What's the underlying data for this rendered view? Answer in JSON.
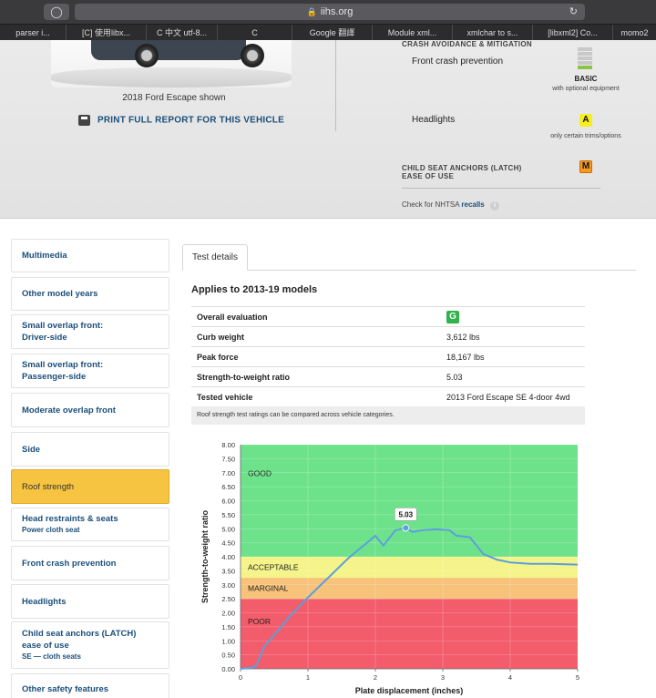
{
  "browser": {
    "url": "iihs.org",
    "bookmarks": [
      "parser i...",
      "[C] 使用libx...",
      "C 中文 utf-8...",
      "C",
      "Google 翻譯",
      "Module xml...",
      "xmlchar to s...",
      "[libxml2] Co...",
      "momo2"
    ]
  },
  "vehicle_summary": {
    "caption": "2018 Ford Escape shown",
    "print_link": "PRINT FULL REPORT FOR THIS VEHICLE",
    "crash_avoidance_title": "CRASH AVOIDANCE & MITIGATION",
    "front_crash_label": "Front crash prevention",
    "front_crash_rating": "BASIC",
    "front_crash_note": "with optional equipment",
    "front_crash_level": 0.2,
    "headlights_label": "Headlights",
    "headlights_rating": "A",
    "headlights_note": "only certain trims/options",
    "latch_title_1": "CHILD SEAT ANCHORS (LATCH)",
    "latch_title_2": "EASE OF USE",
    "latch_rating": "M",
    "recall_text": "Check for NHTSA",
    "recall_link": "recalls"
  },
  "sidebar": {
    "items": [
      {
        "label": "Multimedia",
        "sub": ""
      },
      {
        "label": "Other model years",
        "sub": ""
      },
      {
        "label": "Small overlap front:",
        "label2": "Driver-side"
      },
      {
        "label": "Small overlap front:",
        "label2": "Passenger-side"
      },
      {
        "label": "Moderate overlap front",
        "sub": ""
      },
      {
        "label": "Side",
        "sub": ""
      },
      {
        "label": "Roof strength",
        "sub": ""
      },
      {
        "label": "Head restraints & seats",
        "sub": "Power cloth seat"
      },
      {
        "label": "Front crash prevention",
        "sub": ""
      },
      {
        "label": "Headlights",
        "sub": ""
      },
      {
        "label": "Child seat anchors (LATCH)",
        "label2": "ease of use",
        "sub": "SE — cloth seats"
      },
      {
        "label": "Other safety features",
        "sub": ""
      }
    ]
  },
  "main": {
    "tab": "Test details",
    "applies": "Applies to 2013-19 models",
    "rows": [
      {
        "key": "Overall evaluation",
        "value": "G"
      },
      {
        "key": "Curb weight",
        "value": "3,612 lbs"
      },
      {
        "key": "Peak force",
        "value": "18,167 lbs"
      },
      {
        "key": "Strength-to-weight ratio",
        "value": "5.03"
      },
      {
        "key": "Tested vehicle",
        "value": "2013 Ford Escape SE 4-door 4wd"
      }
    ],
    "note": "Roof strength test ratings can be compared across vehicle categories."
  },
  "chart_data": {
    "type": "line",
    "xlabel": "Plate displacement (inches)",
    "ylabel": "Strength-to-weight ratio",
    "xlim": [
      0,
      5
    ],
    "ylim": [
      0,
      8
    ],
    "x_ticks": [
      "0",
      "1",
      "2",
      "3",
      "4",
      "5"
    ],
    "y_ticks": [
      "0.00",
      "0.50",
      "1.00",
      "1.50",
      "2.00",
      "2.50",
      "3.00",
      "3.50",
      "4.00",
      "4.50",
      "5.00",
      "5.50",
      "6.00",
      "6.50",
      "7.00",
      "7.50",
      "8.00"
    ],
    "bands": [
      {
        "label": "POOR",
        "from": 0,
        "to": 2.5,
        "color": "#f25c6b"
      },
      {
        "label": "MARGINAL",
        "from": 2.5,
        "to": 3.25,
        "color": "#f7c27a"
      },
      {
        "label": "ACCEPTABLE",
        "from": 3.25,
        "to": 4.0,
        "color": "#f4f48a"
      },
      {
        "label": "GOOD",
        "from": 4.0,
        "to": 8.0,
        "color": "#6ee28a"
      }
    ],
    "peak": {
      "x": 2.45,
      "y": 5.03,
      "label": "5.03"
    },
    "series": [
      {
        "color": "#5aa0dc",
        "x": [
          0,
          0.2,
          0.25,
          0.35,
          0.5,
          0.7,
          1.0,
          1.3,
          1.6,
          1.9,
          2.0,
          2.05,
          2.12,
          2.2,
          2.3,
          2.4,
          2.45,
          2.55,
          2.7,
          2.9,
          3.1,
          3.2,
          3.4,
          3.6,
          3.8,
          4.0,
          4.3,
          4.6,
          5.0
        ],
        "y": [
          0.0,
          0.05,
          0.2,
          0.8,
          1.2,
          1.8,
          2.55,
          3.25,
          3.95,
          4.55,
          4.75,
          4.6,
          4.4,
          4.65,
          4.95,
          5.0,
          5.03,
          4.88,
          4.95,
          4.98,
          4.95,
          4.75,
          4.7,
          4.1,
          3.9,
          3.8,
          3.75,
          3.75,
          3.72
        ]
      }
    ]
  }
}
